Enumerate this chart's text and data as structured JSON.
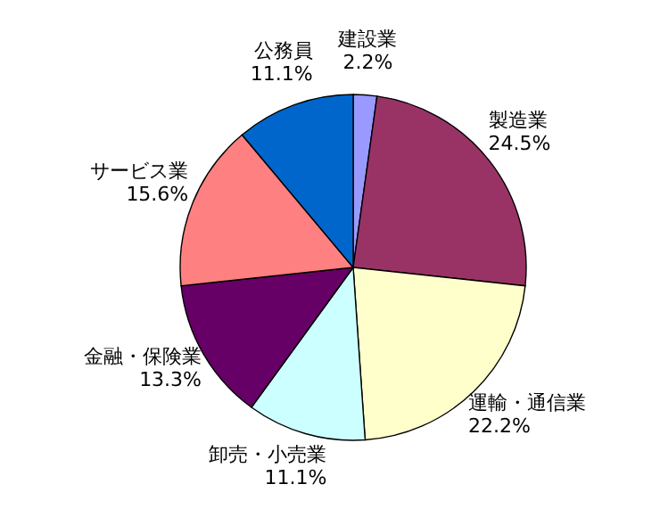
{
  "chart_data": {
    "type": "pie",
    "categories": [
      "建設業",
      "製造業",
      "運輸・通信業",
      "卸売・小売業",
      "金融・保険業",
      "サービス業",
      "公務員"
    ],
    "values": [
      2.2,
      24.5,
      22.2,
      11.1,
      13.3,
      15.6,
      11.1
    ],
    "colors": [
      "#9999ff",
      "#993366",
      "#ffffcc",
      "#ccffff",
      "#660066",
      "#ff8080",
      "#0066cc"
    ],
    "value_labels": [
      "2.2%",
      "24.5%",
      "22.2%",
      "11.1%",
      "13.3%",
      "15.6%",
      "11.1%"
    ]
  }
}
